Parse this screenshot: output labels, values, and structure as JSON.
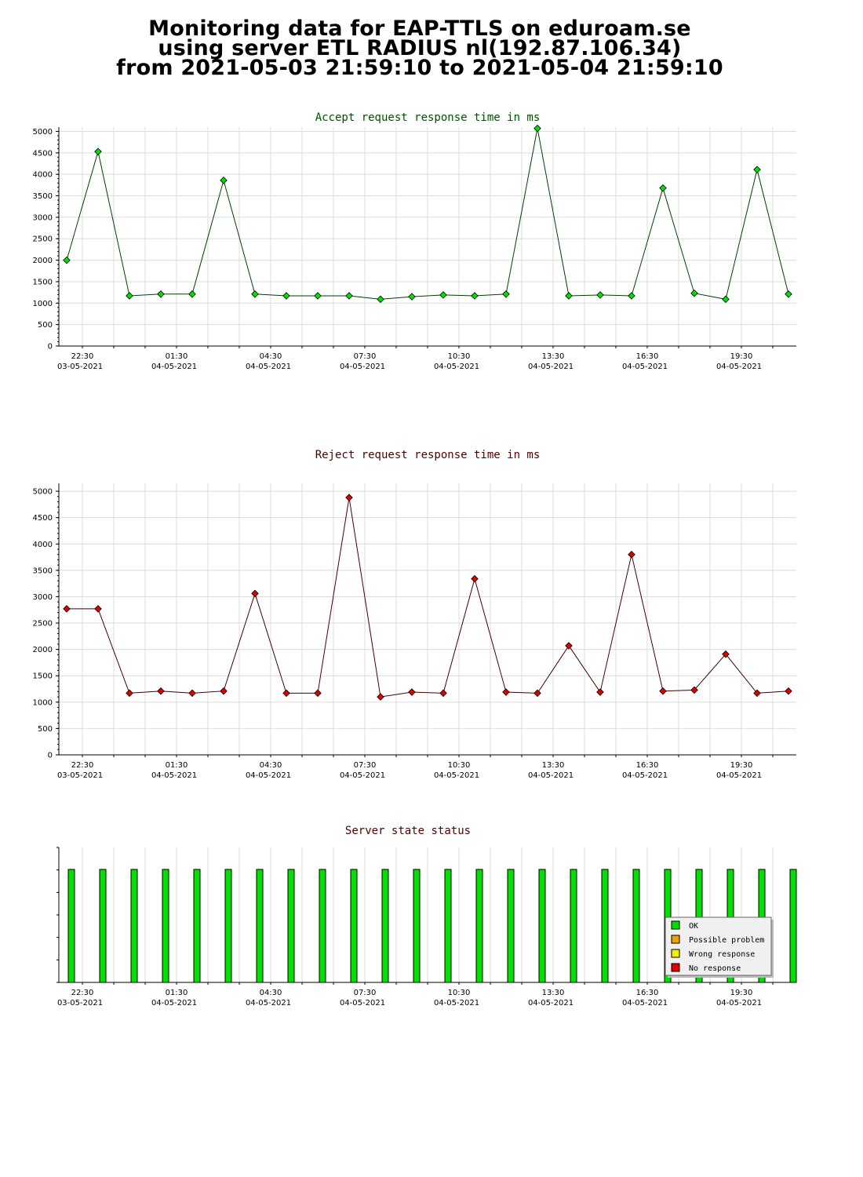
{
  "title": {
    "line1": "Monitoring data for EAP-TTLS on eduroam.se",
    "line2": "using server ETL RADIUS nl(192.87.106.34)",
    "line3": "from 2021-05-03 21:59:10 to 2021-05-04 21:59:10"
  },
  "chart_data": [
    {
      "type": "line",
      "title": "Accept request response time in ms",
      "title_color": "#005000",
      "line_color": "#004000",
      "marker_color": "#00e000",
      "ylim": [
        0,
        5100
      ],
      "yticks": [
        0,
        500,
        1000,
        1500,
        2000,
        2500,
        3000,
        3500,
        4000,
        4500,
        5000
      ],
      "x_tick_times": [
        "22:30",
        "01:30",
        "04:30",
        "07:30",
        "10:30",
        "13:30",
        "16:30",
        "19:30"
      ],
      "x_tick_dates": [
        "03-05-2021",
        "04-05-2021",
        "04-05-2021",
        "04-05-2021",
        "04-05-2021",
        "04-05-2021",
        "04-05-2021",
        "04-05-2021"
      ],
      "x_hours": [
        22.0,
        23.0,
        24.0,
        25.0,
        26.0,
        27.0,
        28.0,
        29.0,
        30.0,
        31.0,
        32.0,
        33.0,
        34.0,
        35.0,
        36.0,
        37.0,
        38.0,
        39.0,
        40.0,
        41.0,
        42.0,
        43.0,
        44.0,
        45.0
      ],
      "values": [
        2000,
        4530,
        1170,
        1210,
        1210,
        3860,
        1210,
        1170,
        1170,
        1170,
        1090,
        1150,
        1190,
        1170,
        1210,
        5070,
        1170,
        1190,
        1170,
        3680,
        1230,
        1090,
        4110,
        1210
      ]
    },
    {
      "type": "line",
      "title": "Reject request response time in ms",
      "title_color": "#500000",
      "line_color": "#400000",
      "marker_color": "#e00000",
      "ylim": [
        0,
        5150
      ],
      "yticks": [
        0,
        500,
        1000,
        1500,
        2000,
        2500,
        3000,
        3500,
        4000,
        4500,
        5000
      ],
      "x_tick_times": [
        "22:30",
        "01:30",
        "04:30",
        "07:30",
        "10:30",
        "13:30",
        "16:30",
        "19:30"
      ],
      "x_tick_dates": [
        "03-05-2021",
        "04-05-2021",
        "04-05-2021",
        "04-05-2021",
        "04-05-2021",
        "04-05-2021",
        "04-05-2021",
        "04-05-2021"
      ],
      "x_hours": [
        22.0,
        23.0,
        24.0,
        25.0,
        26.0,
        27.0,
        28.0,
        29.0,
        30.0,
        31.0,
        32.0,
        33.0,
        34.0,
        35.0,
        36.0,
        37.0,
        38.0,
        39.0,
        40.0,
        41.0,
        42.0,
        43.0,
        44.0,
        45.0
      ],
      "values": [
        2770,
        2770,
        1170,
        1210,
        1170,
        1210,
        3060,
        1170,
        1170,
        4880,
        1100,
        1190,
        1170,
        3340,
        1190,
        1170,
        2070,
        1190,
        3800,
        1210,
        1230,
        1910,
        1170,
        1210
      ]
    },
    {
      "type": "bar",
      "title": "Server state status",
      "title_color": "#500000",
      "bar_color": "#00e000",
      "x_tick_times": [
        "22:30",
        "01:30",
        "04:30",
        "07:30",
        "10:30",
        "13:30",
        "16:30",
        "19:30"
      ],
      "x_tick_dates": [
        "03-05-2021",
        "04-05-2021",
        "04-05-2021",
        "04-05-2021",
        "04-05-2021",
        "04-05-2021",
        "04-05-2021",
        "04-05-2021"
      ],
      "x_hours": [
        22.0,
        23.0,
        24.0,
        25.0,
        26.0,
        27.0,
        28.0,
        29.0,
        30.0,
        31.0,
        32.0,
        33.0,
        34.0,
        35.0,
        36.0,
        37.0,
        38.0,
        39.0,
        40.0,
        41.0,
        42.0,
        43.0,
        44.0,
        45.0
      ],
      "values": [
        1,
        1,
        1,
        1,
        1,
        1,
        1,
        1,
        1,
        1,
        1,
        1,
        1,
        1,
        1,
        1,
        1,
        1,
        1,
        1,
        1,
        1,
        1,
        1
      ],
      "legend": [
        {
          "label": "OK",
          "color": "#00e000"
        },
        {
          "label": "Possible problem",
          "color": "#f0a000"
        },
        {
          "label": "Wrong response",
          "color": "#f0f000"
        },
        {
          "label": "No response",
          "color": "#e00000"
        }
      ],
      "legend_position": "bottom-right"
    }
  ]
}
